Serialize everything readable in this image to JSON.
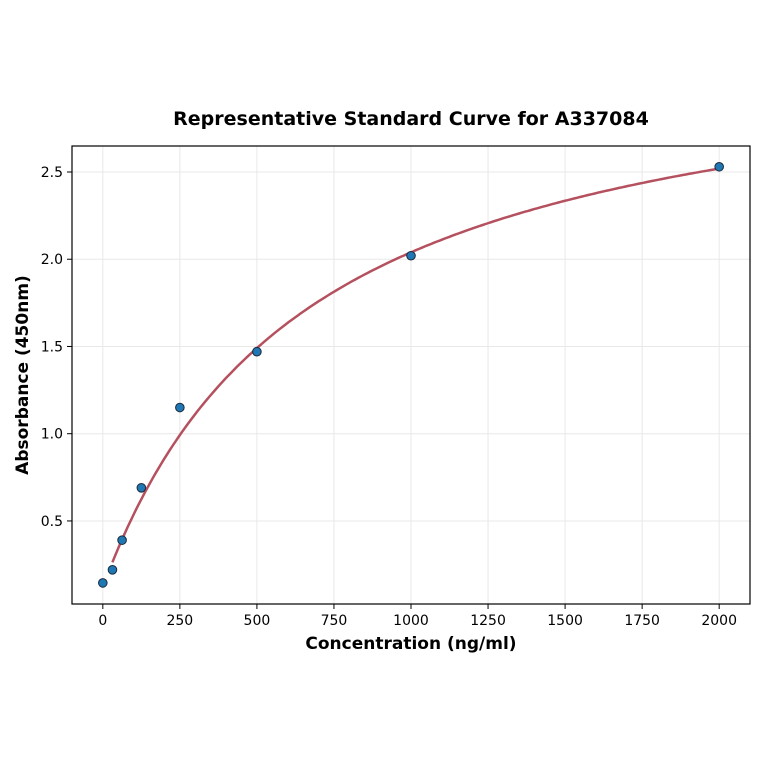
{
  "chart_data": {
    "type": "scatter",
    "title": "Representative Standard Curve for A337084",
    "xlabel": "Concentration (ng/ml)",
    "ylabel": "Absorbance (450nm)",
    "xlim": [
      -100,
      2100
    ],
    "ylim": [
      0.024,
      2.649
    ],
    "xticks": [
      0,
      250,
      500,
      750,
      1000,
      1250,
      1500,
      1750,
      2000
    ],
    "yticks": [
      0.5,
      1.0,
      1.5,
      2.0,
      2.5
    ],
    "ytick_labels": [
      "0.5",
      "1.0",
      "1.5",
      "2.0",
      "2.5"
    ],
    "grid": true,
    "points": {
      "x": [
        0,
        31.25,
        62.5,
        125,
        250,
        500,
        1000,
        2000
      ],
      "y": [
        0.145,
        0.22,
        0.39,
        0.69,
        1.15,
        1.47,
        2.02,
        2.53
      ],
      "color": "#1f77b4"
    },
    "fit_curve": {
      "x_range": [
        31.25,
        2000
      ],
      "color": "#b5515f"
    }
  }
}
